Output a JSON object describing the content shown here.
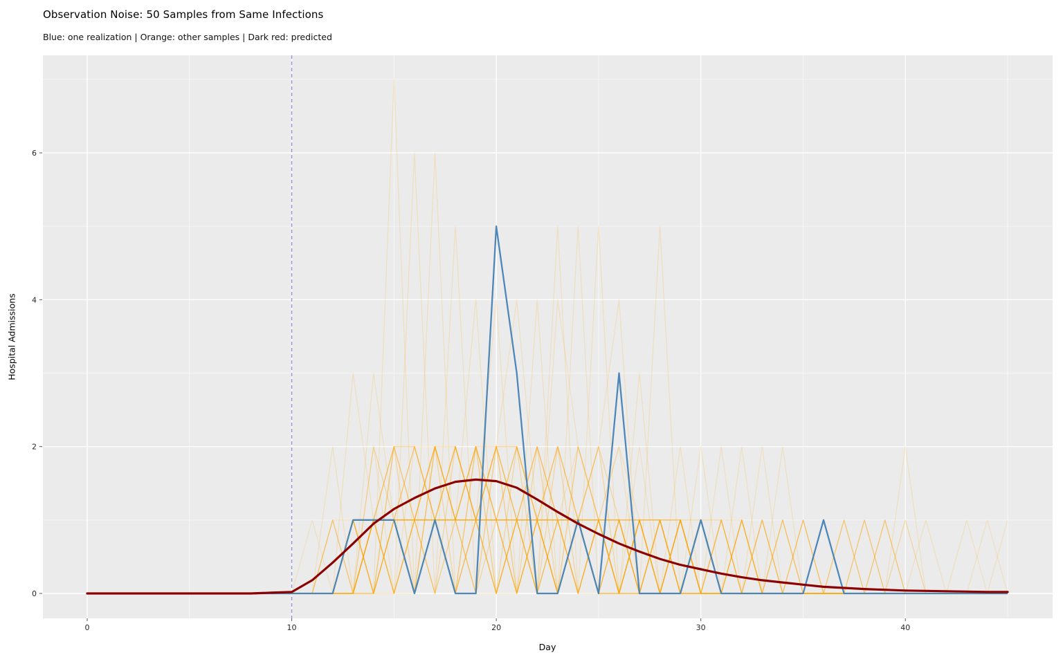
{
  "header": {
    "title": "Observation Noise: 50 Samples from Same Infections",
    "subtitle": "Blue: one realization | Orange: other samples | Dark red: predicted"
  },
  "colors": {
    "panel_bg": "#EBEBEB",
    "figure_bg": "#FFFFFF",
    "grid": "#FFFFFF",
    "blue": "#4682B4",
    "orange": "#FFA500",
    "dark_red": "#8B0000",
    "vline": "#7B7BD6",
    "tick_text": "#262626"
  },
  "chart_data": {
    "type": "line",
    "title": "Observation Noise: 50 Samples from Same Infections",
    "subtitle": "Blue: one realization | Orange: other samples | Dark red: predicted",
    "xlabel": "Day",
    "ylabel": "Hospital Admissions",
    "xlim": [
      -2.2,
      46.8
    ],
    "ylim": [
      -0.33,
      7.33
    ],
    "xticks": [
      0,
      10,
      20,
      30,
      40
    ],
    "xticklabels": [
      "0",
      "10",
      "20",
      "30",
      "40"
    ],
    "yticks": [
      0,
      2,
      4,
      6
    ],
    "yticklabels": [
      "0",
      "2",
      "4",
      "6"
    ],
    "xminor": [
      5,
      15,
      25,
      35,
      45
    ],
    "yminor": [
      1,
      3,
      5,
      7
    ],
    "grid": true,
    "legend_position": "none",
    "vline": {
      "x": 10,
      "style": "dashed"
    },
    "x": [
      0,
      1,
      2,
      3,
      4,
      5,
      6,
      7,
      8,
      9,
      10,
      11,
      12,
      13,
      14,
      15,
      16,
      17,
      18,
      19,
      20,
      21,
      22,
      23,
      24,
      25,
      26,
      27,
      28,
      29,
      30,
      31,
      32,
      33,
      34,
      35,
      36,
      37,
      38,
      39,
      40,
      41,
      42,
      43,
      44,
      45
    ],
    "predicted": [
      0,
      0,
      0,
      0,
      0,
      0,
      0,
      0,
      0,
      0.01,
      0.02,
      0.18,
      0.42,
      0.68,
      0.95,
      1.15,
      1.3,
      1.43,
      1.52,
      1.55,
      1.53,
      1.44,
      1.28,
      1.11,
      0.95,
      0.81,
      0.68,
      0.57,
      0.47,
      0.39,
      0.33,
      0.27,
      0.22,
      0.18,
      0.15,
      0.12,
      0.09,
      0.075,
      0.06,
      0.05,
      0.04,
      0.035,
      0.03,
      0.025,
      0.02,
      0.02
    ],
    "realization": [
      0,
      0,
      0,
      0,
      0,
      0,
      0,
      0,
      0,
      0,
      0,
      0,
      0,
      1,
      1,
      1,
      0,
      1,
      0,
      0,
      5,
      3,
      0,
      0,
      1,
      0,
      3,
      0,
      0,
      0,
      1,
      0,
      0,
      0,
      0,
      0,
      1,
      0,
      0,
      0,
      0,
      0,
      0,
      0,
      0,
      0
    ],
    "samples_count": 49,
    "samples": [
      "0000000000000007012112101010010000000000000000",
      "0000000000000000602111102101100100000000000000",
      "0000000000000101060211211001010001000000000000",
      "0000000000000011105022110110010010000000000000",
      "0000000000000112111401050111000000100000000000",
      "0000000000001011122110105001100000000100000000",
      "0000000000000021021122010500110010000001000000",
      "0000000000000101112124111000500001000000010000",
      "0000000000000012211140121011010000010010000000",
      "0000000000001110120210401121100010000000100000",
      "0000000000000011021211042101001100000000000000",
      "0000000000000102112112101240110000100000000000",
      "0000000000000311121221110101010001000000000000",
      "0000000000000031212110211010020010010000000001",
      "0000000000002011121121202101100100000001000000",
      "0000000000010112211211120102010000000100000000",
      "0000000000000111110111111010100000000000000000",
      "0000000000000012021202101100110010000010000000",
      "0000000000000101210121011111001000100000000000",
      "0000000000000020011201120120010110000000000000",
      "0000000000001002121100112110010000010000000000",
      "0000000000000110101212011001001001000000000000",
      "0000000000000011221101101110110000000001000000",
      "0000000000000102012111021201000010000000000000",
      "0000000000000001111220210110101000000000000000",
      "0000000000000110210111121003011100000000000000",
      "0000000000000012102121102101100000000000000010",
      "0000000000000101120210111210010010000000000000",
      "0000000000001011011102101101000100100000000000",
      "0000000000000021111021210011100000000000000000",
      "0000000000000110122110101200011000000100000000",
      "0000000000000011101201210111000001000000000000",
      "0000000000000102211011021100101000000000000000",
      "0000000000000011012122111001010100000000000000",
      "0000000000000110110111201210002000000000000000",
      "0000000000000011111101110101100200000000000000",
      "0000000000000101021121011010010020000000000000",
      "0000000000000010110211101101001002000000000000",
      "0000000000001001111020111000110000200000000000",
      "0000000000000011011111010111000000010010000000",
      "0000000000000100111101101100101010000000200000",
      "0000000000000011101012111010100001000000000000",
      "0000000000000001110110121001010100000100000000",
      "0000000000000110111001101110001000100000000100",
      "0000000000000011021111011001100010000001000000",
      "0000000000000101110120101110010000000010000000",
      "0000000000000010121101110100101000010000000000",
      "0000000000000111012110111011010000000000000000",
      "0000000000000001211101001100110100000000100000"
    ]
  }
}
